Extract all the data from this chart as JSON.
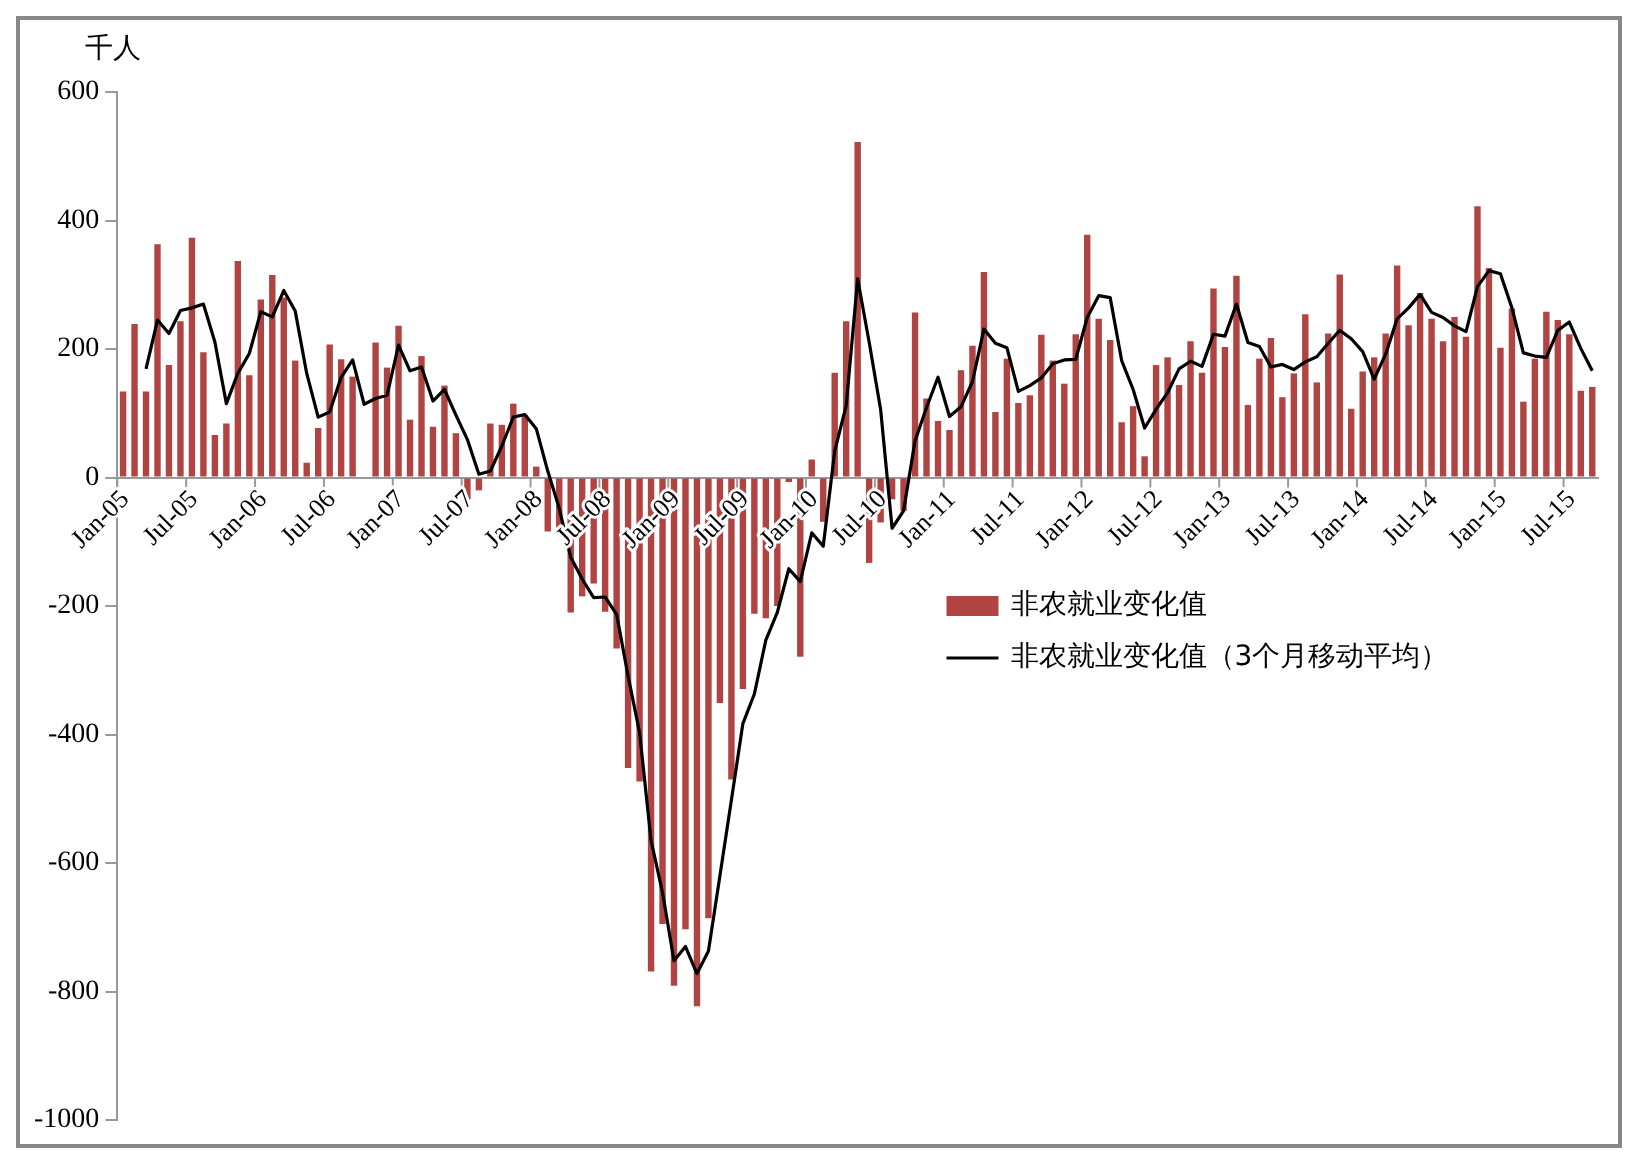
{
  "chart_data": {
    "type": "bar",
    "ylabel": "千人",
    "categories": [
      "Jan-05",
      null,
      null,
      null,
      null,
      null,
      "Jul-05",
      null,
      null,
      null,
      null,
      null,
      "Jan-06",
      null,
      null,
      null,
      null,
      null,
      "Jul-06",
      null,
      null,
      null,
      null,
      null,
      "Jan-07",
      null,
      null,
      null,
      null,
      null,
      "Jul-07",
      null,
      null,
      null,
      null,
      null,
      "Jan-08",
      null,
      null,
      null,
      null,
      null,
      "Jul-08",
      null,
      null,
      null,
      null,
      null,
      "Jan-09",
      null,
      null,
      null,
      null,
      null,
      "Jul-09",
      null,
      null,
      null,
      null,
      null,
      "Jan-10",
      null,
      null,
      null,
      null,
      null,
      "Jul-10",
      null,
      null,
      null,
      null,
      null,
      "Jan-11",
      null,
      null,
      null,
      null,
      null,
      "Jul-11",
      null,
      null,
      null,
      null,
      null,
      "Jan-12",
      null,
      null,
      null,
      null,
      null,
      "Jul-12",
      null,
      null,
      null,
      null,
      null,
      "Jan-13",
      null,
      null,
      null,
      null,
      null,
      "Jul-13",
      null,
      null,
      null,
      null,
      null,
      "Jan-14",
      null,
      null,
      null,
      null,
      null,
      "Jul-14",
      null,
      null,
      null,
      null,
      null,
      "Jan-15",
      null,
      null,
      null,
      null,
      null,
      "Jul-15",
      null,
      null
    ],
    "series": [
      {
        "name": "非农就业变化值",
        "color": "#b04442",
        "values": [
          134,
          239,
          134,
          363,
          175,
          243,
          373,
          195,
          66,
          84,
          337,
          159,
          277,
          315,
          280,
          182,
          23,
          77,
          207,
          184,
          157,
          null,
          210,
          171,
          236,
          90,
          189,
          79,
          143,
          69,
          -34,
          -20,
          84,
          82,
          115,
          97,
          17,
          -84,
          -78,
          -210,
          -185,
          -165,
          -209,
          -266,
          -452,
          -473,
          -769,
          -695,
          -791,
          -703,
          -823,
          -686,
          -351,
          -470,
          -329,
          -212,
          -219,
          -200,
          -7,
          -279,
          28,
          -69,
          163,
          243,
          522,
          -133,
          -70,
          -34,
          -52,
          257,
          123,
          88,
          74,
          167,
          205,
          320,
          102,
          185,
          116,
          128,
          222,
          182,
          146,
          223,
          378,
          247,
          214,
          86,
          111,
          33,
          175,
          187,
          144,
          212,
          163,
          294,
          203,
          314,
          113,
          185,
          217,
          125,
          162,
          254,
          148,
          224,
          316,
          107,
          165,
          187,
          224,
          330,
          237,
          287,
          247,
          212,
          250,
          219,
          422,
          326,
          202,
          263,
          118,
          185,
          258,
          245,
          223,
          135,
          141
        ]
      },
      {
        "name": "非农就业变化值（3个月移动平均）",
        "type": "line",
        "color": "#000000",
        "values": [
          null,
          null,
          169,
          245,
          224,
          260,
          264,
          270,
          211,
          115,
          162,
          193,
          258,
          250,
          291,
          259,
          162,
          94,
          102,
          156,
          183,
          114,
          123,
          128,
          206,
          166,
          172,
          119,
          137,
          97,
          59,
          5,
          10,
          49,
          94,
          98,
          76,
          10,
          -48,
          -124,
          -158,
          -187,
          -186,
          -213,
          -309,
          -397,
          -565,
          -646,
          -752,
          -730,
          -772,
          -737,
          -620,
          -502,
          -383,
          -337,
          -253,
          -210,
          -142,
          -162,
          -86,
          -107,
          41,
          112,
          309,
          211,
          106,
          -79,
          -52,
          57,
          109,
          156,
          95,
          110,
          149,
          231,
          209,
          202,
          134,
          143,
          155,
          177,
          183,
          184,
          249,
          283,
          280,
          182,
          137,
          77,
          106,
          132,
          169,
          181,
          173,
          223,
          220,
          270,
          210,
          204,
          172,
          176,
          168,
          180,
          188,
          209,
          229,
          216,
          196,
          153,
          192,
          247,
          264,
          285,
          257,
          249,
          236,
          227,
          297,
          322,
          317,
          264,
          194,
          189,
          187,
          229,
          242,
          201,
          166
        ]
      }
    ],
    "ylim": [
      -1000,
      600
    ],
    "yticks": [
      -1000,
      -800,
      -600,
      -400,
      -200,
      0,
      200,
      400,
      600
    ],
    "grid": false,
    "legend": "right",
    "marker": "none",
    "line_style": "solid"
  }
}
